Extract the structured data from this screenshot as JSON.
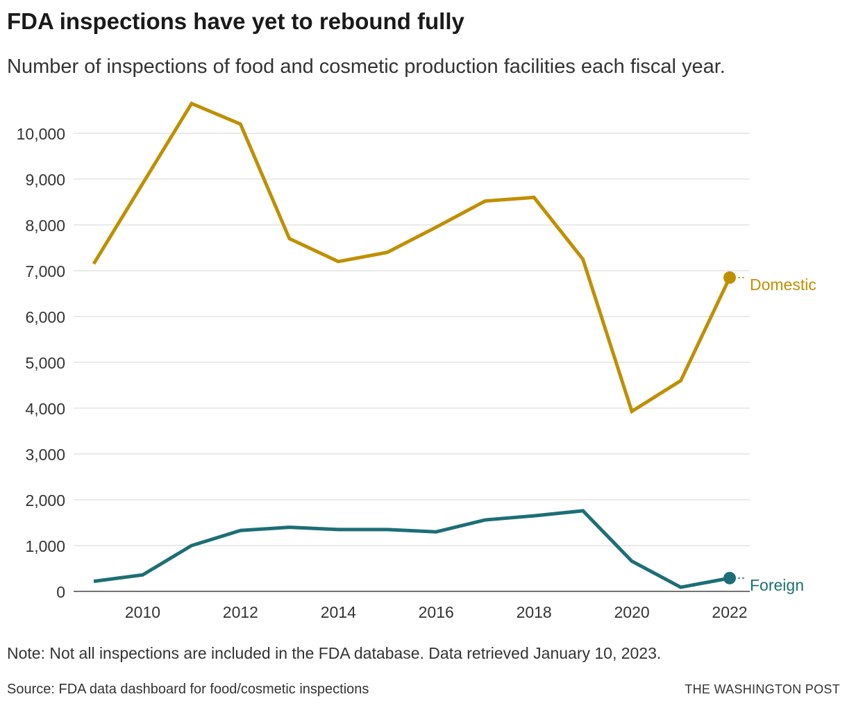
{
  "chart_data": {
    "type": "line",
    "title": "FDA inspections have yet to rebound fully",
    "subtitle": "Number of inspections of food and cosmetic production facilities each fiscal year.",
    "x": [
      2009,
      2010,
      2011,
      2012,
      2013,
      2014,
      2015,
      2016,
      2017,
      2018,
      2019,
      2020,
      2021,
      2022
    ],
    "xticks": [
      "2010",
      "2012",
      "2014",
      "2016",
      "2018",
      "2020",
      "2022"
    ],
    "yticks": [
      "0",
      "1,000",
      "2,000",
      "3,000",
      "4,000",
      "5,000",
      "6,000",
      "7,000",
      "8,000",
      "9,000",
      "10,000"
    ],
    "ylim": [
      0,
      10000
    ],
    "xlim": [
      2009,
      2022
    ],
    "xlabel": "",
    "ylabel": "",
    "grid": true,
    "series": [
      {
        "name": "Domestic",
        "color": "#c08f00",
        "values": [
          7150,
          8900,
          10650,
          10200,
          7700,
          7200,
          7400,
          7950,
          8520,
          8600,
          7250,
          3930,
          4600,
          6850
        ]
      },
      {
        "name": "Foreign",
        "color": "#1d6e76",
        "values": [
          220,
          360,
          1000,
          1330,
          1400,
          1350,
          1350,
          1300,
          1560,
          1650,
          1760,
          660,
          90,
          290
        ]
      }
    ]
  },
  "note": "Note: Not all inspections are included in the FDA database. Data retrieved January 10, 2023.",
  "source": "Source: FDA data dashboard for food/cosmetic inspections",
  "credit": "THE WASHINGTON POST"
}
